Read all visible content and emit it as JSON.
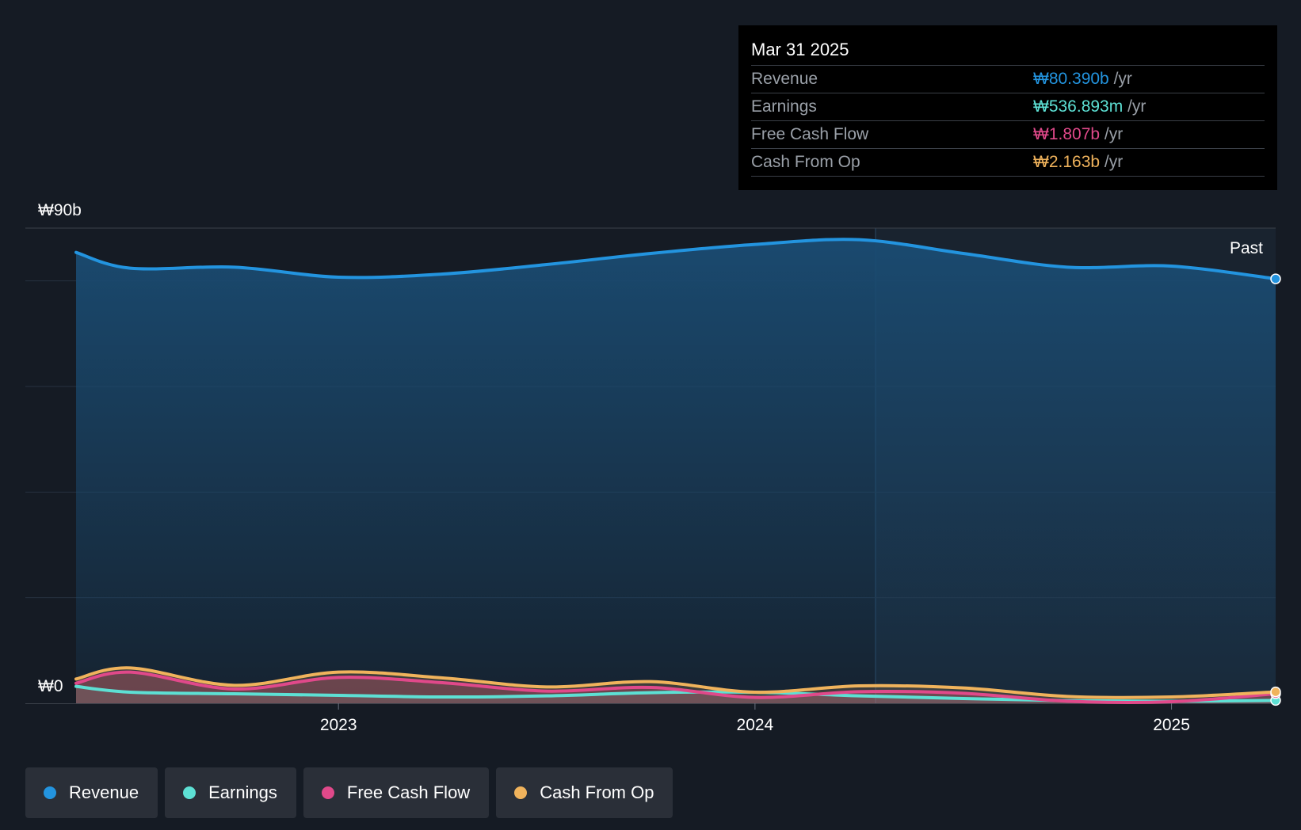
{
  "tooltip": {
    "date": "Mar 31 2025",
    "rows": [
      {
        "label": "Revenue",
        "value": "₩80.390b",
        "unit": "/yr",
        "color": "#2394df"
      },
      {
        "label": "Earnings",
        "value": "₩536.893m",
        "unit": "/yr",
        "color": "#5de0d4"
      },
      {
        "label": "Free Cash Flow",
        "value": "₩1.807b",
        "unit": "/yr",
        "color": "#e0498a"
      },
      {
        "label": "Cash From Op",
        "value": "₩2.163b",
        "unit": "/yr",
        "color": "#f0b35c"
      }
    ]
  },
  "past_label": "Past",
  "legend": [
    {
      "label": "Revenue",
      "color": "#2394df"
    },
    {
      "label": "Earnings",
      "color": "#5de0d4"
    },
    {
      "label": "Free Cash Flow",
      "color": "#e0498a"
    },
    {
      "label": "Cash From Op",
      "color": "#f0b35c"
    }
  ],
  "chart_data": {
    "type": "area",
    "ylim": [
      0,
      90
    ],
    "y_unit": "₩b",
    "y_tick_labels": [
      {
        "value": 90,
        "label": "₩90b"
      },
      {
        "value": 0,
        "label": "₩0"
      }
    ],
    "xlim": [
      2022.37,
      2025.25
    ],
    "x_ticks": [
      {
        "value": 2023.0,
        "label": "2023"
      },
      {
        "value": 2024.0,
        "label": "2024"
      },
      {
        "value": 2025.0,
        "label": "2025"
      }
    ],
    "past_start": 2024.25,
    "grid": true,
    "series": [
      {
        "name": "Revenue",
        "color": "#2394df",
        "x": [
          2022.25,
          2022.5,
          2022.75,
          2023.0,
          2023.25,
          2023.5,
          2023.75,
          2024.0,
          2024.25,
          2024.5,
          2024.75,
          2025.0,
          2025.25
        ],
        "values": [
          85.4,
          82.4,
          82.6,
          80.7,
          81.3,
          83.1,
          85.2,
          86.9,
          87.8,
          85.2,
          82.6,
          82.8,
          80.39
        ]
      },
      {
        "name": "Earnings",
        "color": "#5de0d4",
        "x": [
          2022.25,
          2022.5,
          2022.75,
          2023.0,
          2023.25,
          2023.5,
          2023.75,
          2024.0,
          2024.25,
          2024.5,
          2024.75,
          2025.0,
          2025.25
        ],
        "values": [
          3.2,
          2.1,
          1.8,
          1.5,
          1.2,
          1.4,
          2.0,
          2.1,
          1.4,
          0.9,
          0.5,
          0.4,
          0.54
        ]
      },
      {
        "name": "Free Cash Flow",
        "color": "#e0498a",
        "x": [
          2022.25,
          2022.5,
          2022.75,
          2023.0,
          2023.25,
          2023.5,
          2023.75,
          2024.0,
          2024.25,
          2024.5,
          2024.75,
          2025.0,
          2025.25
        ],
        "values": [
          3.8,
          5.9,
          2.7,
          4.9,
          3.9,
          2.3,
          3.0,
          1.1,
          2.2,
          1.9,
          0.4,
          0.3,
          1.81
        ]
      },
      {
        "name": "Cash From Op",
        "color": "#f0b35c",
        "x": [
          2022.25,
          2022.5,
          2022.75,
          2023.0,
          2023.25,
          2023.5,
          2023.75,
          2024.0,
          2024.25,
          2024.5,
          2024.75,
          2025.0,
          2025.25
        ],
        "values": [
          4.6,
          6.7,
          3.4,
          5.9,
          4.8,
          3.1,
          4.1,
          2.1,
          3.3,
          2.9,
          1.3,
          1.2,
          2.16
        ]
      }
    ]
  }
}
